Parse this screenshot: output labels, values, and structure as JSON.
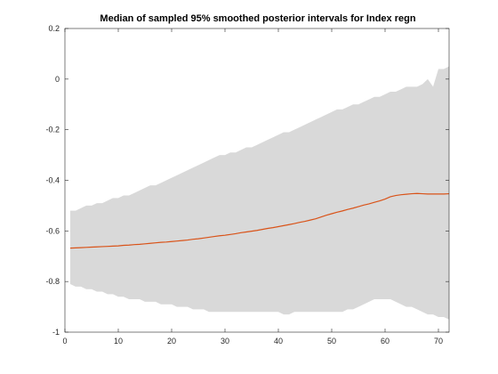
{
  "chart_data": {
    "type": "area",
    "title": "Median of sampled 95% smoothed posterior intervals for Index regn",
    "xlabel": "",
    "ylabel": "",
    "xlim": [
      0,
      72
    ],
    "ylim": [
      -1,
      0.2
    ],
    "xticks": [
      0,
      10,
      20,
      30,
      40,
      50,
      60,
      70
    ],
    "yticks": [
      0.2,
      0,
      -0.2,
      -0.4,
      -0.6,
      -0.8,
      -1
    ],
    "grid": false,
    "legend": "none",
    "band": {
      "x": [
        1,
        2,
        3,
        4,
        5,
        6,
        7,
        8,
        9,
        10,
        11,
        12,
        13,
        14,
        15,
        16,
        17,
        18,
        19,
        20,
        21,
        22,
        23,
        24,
        25,
        26,
        27,
        28,
        29,
        30,
        31,
        32,
        33,
        34,
        35,
        36,
        37,
        38,
        39,
        40,
        41,
        42,
        43,
        44,
        45,
        46,
        47,
        48,
        49,
        50,
        51,
        52,
        53,
        54,
        55,
        56,
        57,
        58,
        59,
        60,
        61,
        62,
        63,
        64,
        65,
        66,
        67,
        68,
        69,
        70,
        71,
        72
      ],
      "upper": [
        -0.52,
        -0.52,
        -0.51,
        -0.5,
        -0.5,
        -0.49,
        -0.49,
        -0.48,
        -0.47,
        -0.47,
        -0.46,
        -0.46,
        -0.45,
        -0.44,
        -0.43,
        -0.42,
        -0.42,
        -0.41,
        -0.4,
        -0.39,
        -0.38,
        -0.37,
        -0.36,
        -0.35,
        -0.34,
        -0.33,
        -0.32,
        -0.31,
        -0.3,
        -0.3,
        -0.29,
        -0.29,
        -0.28,
        -0.27,
        -0.27,
        -0.26,
        -0.25,
        -0.24,
        -0.23,
        -0.22,
        -0.21,
        -0.21,
        -0.2,
        -0.19,
        -0.18,
        -0.17,
        -0.16,
        -0.15,
        -0.14,
        -0.13,
        -0.12,
        -0.12,
        -0.11,
        -0.1,
        -0.1,
        -0.09,
        -0.08,
        -0.07,
        -0.07,
        -0.06,
        -0.05,
        -0.05,
        -0.04,
        -0.03,
        -0.03,
        -0.03,
        -0.02,
        0.0,
        -0.03,
        0.04,
        0.04,
        0.05
      ],
      "lower": [
        -0.81,
        -0.82,
        -0.82,
        -0.83,
        -0.83,
        -0.84,
        -0.84,
        -0.85,
        -0.85,
        -0.86,
        -0.86,
        -0.87,
        -0.87,
        -0.87,
        -0.88,
        -0.88,
        -0.88,
        -0.89,
        -0.89,
        -0.89,
        -0.9,
        -0.9,
        -0.9,
        -0.91,
        -0.91,
        -0.91,
        -0.92,
        -0.92,
        -0.92,
        -0.92,
        -0.92,
        -0.92,
        -0.92,
        -0.92,
        -0.92,
        -0.92,
        -0.92,
        -0.92,
        -0.92,
        -0.92,
        -0.93,
        -0.93,
        -0.92,
        -0.92,
        -0.92,
        -0.92,
        -0.92,
        -0.92,
        -0.92,
        -0.92,
        -0.92,
        -0.92,
        -0.91,
        -0.91,
        -0.9,
        -0.89,
        -0.88,
        -0.87,
        -0.87,
        -0.87,
        -0.87,
        -0.88,
        -0.89,
        -0.9,
        -0.9,
        -0.91,
        -0.92,
        -0.93,
        -0.93,
        -0.94,
        -0.94,
        -0.95
      ]
    },
    "series": [
      {
        "x": [
          1,
          2,
          3,
          4,
          5,
          6,
          7,
          8,
          9,
          10,
          11,
          12,
          13,
          14,
          15,
          16,
          17,
          18,
          19,
          20,
          21,
          22,
          23,
          24,
          25,
          26,
          27,
          28,
          29,
          30,
          31,
          32,
          33,
          34,
          35,
          36,
          37,
          38,
          39,
          40,
          41,
          42,
          43,
          44,
          45,
          46,
          47,
          48,
          49,
          50,
          51,
          52,
          53,
          54,
          55,
          56,
          57,
          58,
          59,
          60,
          61,
          62,
          63,
          64,
          65,
          66,
          67,
          68,
          69,
          70,
          71,
          72
        ],
        "values": [
          -0.668,
          -0.667,
          -0.666,
          -0.665,
          -0.664,
          -0.663,
          -0.662,
          -0.661,
          -0.66,
          -0.659,
          -0.657,
          -0.656,
          -0.654,
          -0.653,
          -0.651,
          -0.649,
          -0.647,
          -0.645,
          -0.644,
          -0.642,
          -0.64,
          -0.638,
          -0.636,
          -0.633,
          -0.631,
          -0.628,
          -0.625,
          -0.622,
          -0.619,
          -0.617,
          -0.614,
          -0.611,
          -0.607,
          -0.604,
          -0.601,
          -0.598,
          -0.594,
          -0.59,
          -0.587,
          -0.583,
          -0.579,
          -0.575,
          -0.571,
          -0.566,
          -0.562,
          -0.557,
          -0.552,
          -0.545,
          -0.538,
          -0.532,
          -0.526,
          -0.521,
          -0.515,
          -0.51,
          -0.504,
          -0.498,
          -0.493,
          -0.487,
          -0.481,
          -0.474,
          -0.465,
          -0.46,
          -0.457,
          -0.455,
          -0.453,
          -0.452,
          -0.453,
          -0.454,
          -0.454,
          -0.454,
          -0.454,
          -0.453
        ]
      }
    ],
    "colors": {
      "band": "#d9d9d9",
      "line": "#d95319",
      "axis": "#262626"
    }
  }
}
